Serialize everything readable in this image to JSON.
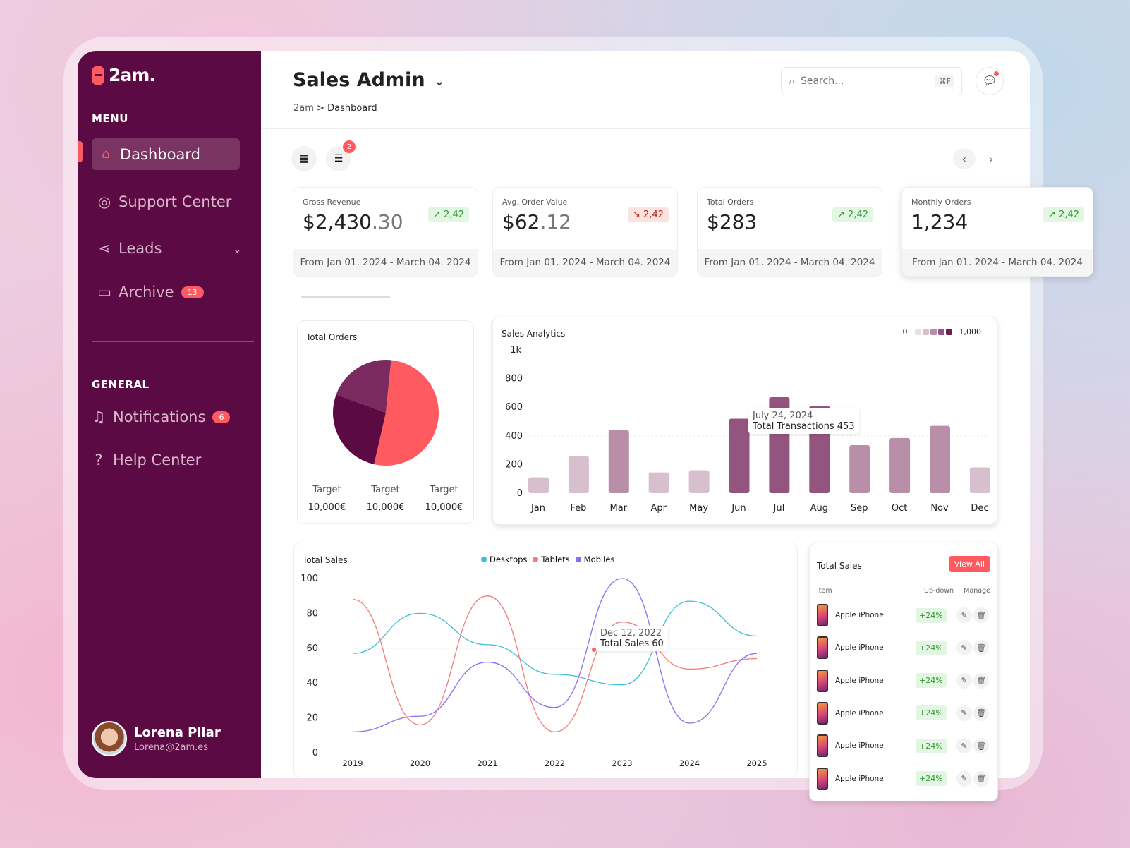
{
  "app": {
    "logo": "2am.",
    "title": "Sales Admin",
    "breadcrumb_root": "2am",
    "breadcrumb_sep": ">",
    "breadcrumb_current": "Dashboard"
  },
  "search": {
    "placeholder": "Search...",
    "shortcut": "⌘F"
  },
  "sidebar": {
    "menu_label": "MENU",
    "general_label": "GENERAL",
    "items": [
      {
        "label": "Dashboard",
        "icon": "home-icon",
        "active": true
      },
      {
        "label": "Support Center",
        "icon": "support-icon"
      },
      {
        "label": "Leads",
        "icon": "share-icon"
      },
      {
        "label": "Archive",
        "icon": "folder-icon",
        "badge": "13"
      }
    ],
    "general": [
      {
        "label": "Notifications",
        "icon": "bell-icon",
        "badge": "6"
      },
      {
        "label": "Help Center",
        "icon": "question-icon"
      }
    ],
    "user": {
      "name": "Lorena Pilar",
      "email": "Lorena@2am.es"
    }
  },
  "toolbar": {
    "filter_badge": "2"
  },
  "kpis": [
    {
      "label": "Gross Revenue",
      "value_main": "$2,430",
      "value_dec": ".30",
      "trend": "2,42",
      "direction": "up",
      "period": "From Jan 01. 2024 - March 04. 2024"
    },
    {
      "label": "Avg. Order Value",
      "value_main": "$62",
      "value_dec": ".12",
      "trend": "2,42",
      "direction": "down",
      "period": "From Jan 01. 2024 - March 04. 2024"
    },
    {
      "label": "Total Orders",
      "value_main": "$283",
      "value_dec": "",
      "trend": "2,42",
      "direction": "up",
      "period": "From Jan 01. 2024 - March 04. 2024"
    },
    {
      "label": "Monthly Orders",
      "value_main": "1,234",
      "value_dec": "",
      "trend": "2,42",
      "direction": "up",
      "period": "From Jan 01. 2024 - March 04. 2024"
    }
  ],
  "colors": {
    "brand": "#5c0a43",
    "accent": "#ff5a5f",
    "up": "#2e9a2e",
    "down": "#b3261e"
  },
  "chart_data": [
    {
      "type": "pie",
      "title": "Total Orders",
      "values": [
        52,
        27,
        21
      ],
      "colors": [
        "#ff5a5f",
        "#5c0a43",
        "#7a2a5e"
      ],
      "targets": [
        {
          "label": "Target",
          "value": "10,000€"
        },
        {
          "label": "Target",
          "value": "10,000€"
        },
        {
          "label": "Target",
          "value": "10,000€"
        }
      ]
    },
    {
      "type": "bar",
      "title": "Sales Analytics",
      "categories": [
        "Jan",
        "Feb",
        "Mar",
        "Apr",
        "May",
        "Jun",
        "Jul",
        "Aug",
        "Sep",
        "Oct",
        "Nov",
        "Dec"
      ],
      "values": [
        110,
        260,
        440,
        145,
        160,
        520,
        670,
        610,
        335,
        385,
        470,
        180
      ],
      "ylim": [
        0,
        1000
      ],
      "yticks": [
        "0",
        "200",
        "400",
        "600",
        "800",
        "1k"
      ],
      "legend": {
        "min": "0",
        "max": "1,000",
        "colors": [
          "#ece0e8",
          "#d8bfce",
          "#b98ea8",
          "#93547f",
          "#6b1f55"
        ]
      },
      "tooltip": {
        "date": "July 24, 2024",
        "label": "Total Transactions 453"
      }
    },
    {
      "type": "line",
      "title": "Total Sales",
      "x": [
        2019,
        2020,
        2021,
        2022,
        2023,
        2024,
        2025
      ],
      "ylim": [
        0,
        100
      ],
      "yticks": [
        "0",
        "20",
        "40",
        "60",
        "80",
        "100"
      ],
      "series": [
        {
          "name": "Desktops",
          "color": "#3bbfd6",
          "values": [
            57,
            80,
            62,
            45,
            39,
            87,
            67
          ]
        },
        {
          "name": "Tablets",
          "color": "#f47c7c",
          "values": [
            88,
            16,
            90,
            12,
            75,
            48,
            54
          ]
        },
        {
          "name": "Mobiles",
          "color": "#8b6cf0",
          "values": [
            12,
            21,
            52,
            26,
            100,
            17,
            57
          ]
        }
      ],
      "tooltip": {
        "date": "Dec 12, 2022",
        "label": "Total Sales 60"
      }
    }
  ],
  "table": {
    "title": "Total Sales",
    "view_all": "View All",
    "headers": [
      "Item",
      "Up-down",
      "Manage"
    ],
    "rows": [
      {
        "item": "Apple iPhone",
        "change": "+24%"
      },
      {
        "item": "Apple iPhone",
        "change": "+24%"
      },
      {
        "item": "Apple iPhone",
        "change": "+24%"
      },
      {
        "item": "Apple iPhone",
        "change": "+24%"
      },
      {
        "item": "Apple iPhone",
        "change": "+24%"
      },
      {
        "item": "Apple iPhone",
        "change": "+24%"
      }
    ]
  }
}
